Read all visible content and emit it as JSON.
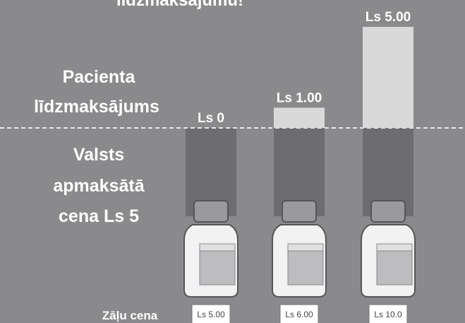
{
  "chart_data": {
    "type": "bar",
    "title": "līdzmaksājumu!",
    "upper_label": [
      "Pacienta",
      "līdzmaksājums"
    ],
    "lower_label": [
      "Valsts",
      "apmaksātā",
      "cena Ls 5"
    ],
    "price_label": "Zāļu cena",
    "categories": [
      "Ls 5.00",
      "Ls 6.00",
      "Ls 10.0"
    ],
    "values": [
      0,
      1,
      5
    ],
    "value_labels": [
      "Ls 0",
      "Ls 1.00",
      "Ls 5.00"
    ],
    "color": "#d9d9d9"
  }
}
